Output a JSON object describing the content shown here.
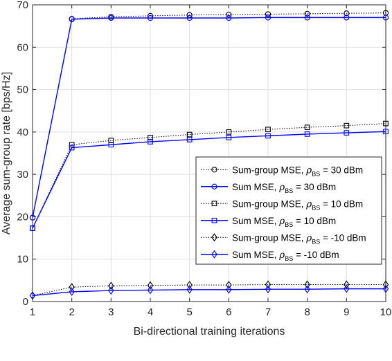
{
  "chart_data": {
    "type": "line",
    "xlabel": "Bi-directional training iterations",
    "ylabel": "Average sum-group rate [bps/Hz]",
    "xlim": [
      1,
      10
    ],
    "ylim": [
      0,
      70
    ],
    "xticks": [
      1,
      2,
      3,
      4,
      5,
      6,
      7,
      8,
      9,
      10
    ],
    "yticks": [
      0,
      10,
      20,
      30,
      40,
      50,
      60,
      70
    ],
    "grid": true,
    "legend_position": "center-right",
    "x": [
      1,
      2,
      3,
      4,
      5,
      6,
      7,
      8,
      9,
      10
    ],
    "series": [
      {
        "name_prefix": "Sum-group MSE, ",
        "name_suffix": " = 30 dBm",
        "marker": "circle",
        "color": "#000000",
        "style": "dotted",
        "values": [
          19.8,
          66.7,
          67.2,
          67.4,
          67.6,
          67.7,
          67.8,
          67.9,
          68.0,
          68.1
        ]
      },
      {
        "name_prefix": "Sum MSE, ",
        "name_suffix": " = 30 dBm",
        "marker": "circle",
        "color": "#0000ff",
        "style": "solid",
        "values": [
          19.8,
          66.6,
          66.9,
          66.9,
          66.9,
          66.9,
          67.0,
          67.0,
          67.0,
          67.0
        ]
      },
      {
        "name_prefix": "Sum-group MSE, ",
        "name_suffix": " = 10 dBm",
        "marker": "square",
        "color": "#000000",
        "style": "dotted",
        "values": [
          17.3,
          37.0,
          38.0,
          38.7,
          39.4,
          40.0,
          40.6,
          41.1,
          41.5,
          42.0
        ]
      },
      {
        "name_prefix": "Sum MSE, ",
        "name_suffix": " = 10 dBm",
        "marker": "square",
        "color": "#0000ff",
        "style": "solid",
        "values": [
          17.3,
          36.3,
          37.0,
          37.7,
          38.2,
          38.7,
          39.1,
          39.5,
          39.8,
          40.1
        ]
      },
      {
        "name_prefix": "Sum-group MSE, ",
        "name_suffix": " = -10 dBm",
        "marker": "diamond",
        "color": "#000000",
        "style": "dotted",
        "values": [
          1.4,
          3.4,
          3.7,
          3.8,
          3.9,
          3.9,
          4.0,
          4.0,
          4.0,
          4.0
        ]
      },
      {
        "name_prefix": "Sum MSE, ",
        "name_suffix": " = -10 dBm",
        "marker": "diamond",
        "color": "#0000ff",
        "style": "solid",
        "values": [
          1.4,
          2.3,
          2.6,
          2.7,
          2.8,
          2.8,
          2.9,
          2.9,
          3.0,
          3.0
        ]
      }
    ]
  }
}
